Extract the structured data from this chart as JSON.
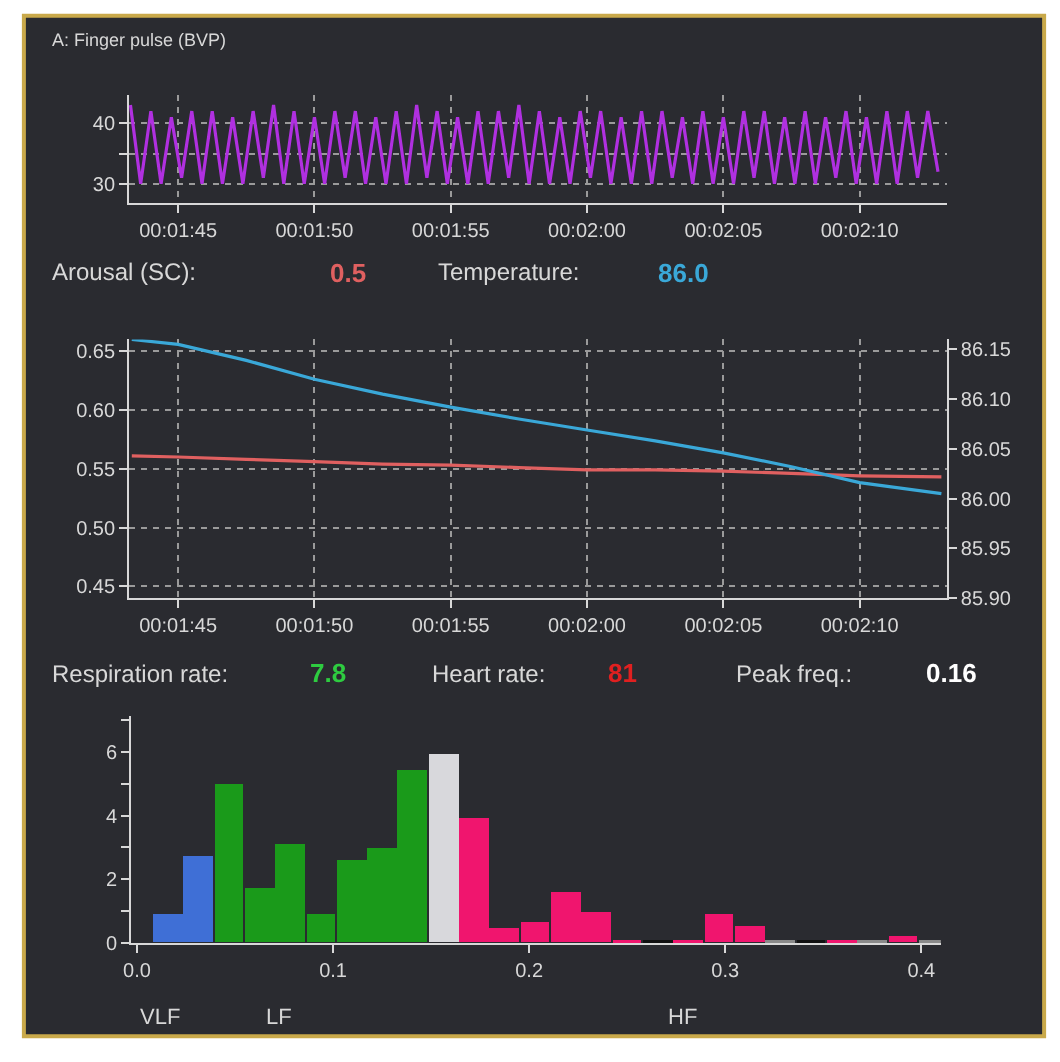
{
  "chart_data": [
    {
      "type": "line",
      "title": "A: Finger pulse (BVP)",
      "color": "#b030e0",
      "grid": true,
      "xlim": [
        103.2,
        133.2
      ],
      "ylim": [
        26.8,
        44.7
      ],
      "xticks": [
        {
          "value": 105,
          "label": "00:01:45"
        },
        {
          "value": 110,
          "label": "00:01:50"
        },
        {
          "value": 115,
          "label": "00:01:55"
        },
        {
          "value": 120,
          "label": "00:02:00"
        },
        {
          "value": 125,
          "label": "00:02:05"
        },
        {
          "value": 130,
          "label": "00:02:10"
        }
      ],
      "yticks": [
        30,
        {
          "value": 35,
          "label": null
        },
        40
      ],
      "x": [
        103.25,
        103.625,
        104,
        104.375,
        104.75,
        105.125,
        105.5,
        105.875,
        106.25,
        106.625,
        107,
        107.375,
        107.75,
        108.125,
        108.5,
        108.875,
        109.25,
        109.625,
        110,
        110.375,
        110.75,
        111.125,
        111.5,
        111.875,
        112.25,
        112.625,
        113,
        113.375,
        113.75,
        114.125,
        114.5,
        114.875,
        115.25,
        115.625,
        116,
        116.375,
        116.75,
        117.125,
        117.5,
        117.875,
        118.25,
        118.625,
        119,
        119.375,
        119.75,
        120.125,
        120.5,
        120.875,
        121.25,
        121.625,
        122,
        122.375,
        122.75,
        123.125,
        123.5,
        123.875,
        124.25,
        124.625,
        125,
        125.375,
        125.75,
        126.125,
        126.5,
        126.875,
        127.25,
        127.625,
        128,
        128.375,
        128.75,
        129.125,
        129.5,
        129.875,
        130.25,
        130.625,
        131,
        131.375,
        131.75,
        132.125,
        132.5,
        132.875
      ],
      "values": [
        43,
        30,
        42,
        30,
        41,
        31,
        42,
        30,
        42,
        30,
        41,
        30,
        42,
        31,
        43,
        30,
        42,
        30,
        41,
        30,
        42,
        31,
        42,
        30,
        41,
        30,
        42,
        30,
        43,
        31,
        42,
        30,
        41,
        30,
        42,
        30,
        42,
        31,
        43,
        30,
        42,
        30,
        41,
        30,
        42,
        31,
        42,
        30,
        41,
        30,
        42,
        30,
        42,
        31,
        41,
        30,
        42,
        30,
        41,
        30,
        42,
        31,
        42,
        30,
        41,
        30,
        42,
        30,
        41,
        31,
        42,
        30,
        41,
        30,
        42,
        30,
        42,
        31,
        42,
        32
      ]
    },
    {
      "type": "line",
      "grid": true,
      "xlim": [
        103.2,
        133.2
      ],
      "ylim": [
        0.44,
        0.66
      ],
      "y2lim": [
        85.9,
        86.16
      ],
      "xticks": [
        {
          "value": 105,
          "label": "00:01:45"
        },
        {
          "value": 110,
          "label": "00:01:50"
        },
        {
          "value": 115,
          "label": "00:01:55"
        },
        {
          "value": 120,
          "label": "00:02:00"
        },
        {
          "value": 125,
          "label": "00:02:05"
        },
        {
          "value": 130,
          "label": "00:02:10"
        }
      ],
      "yticks": [
        0.45,
        {
          "value": 0.5,
          "label": "0.50"
        },
        0.55,
        {
          "value": 0.6,
          "label": "0.60"
        },
        0.65
      ],
      "y2ticks": [
        {
          "value": 85.9,
          "label": "85.90"
        },
        85.95,
        {
          "value": 86.0,
          "label": "86.00"
        },
        86.05,
        {
          "value": 86.1,
          "label": "86.10"
        },
        86.15
      ],
      "x": [
        103.3,
        105,
        107.5,
        110,
        112.5,
        115,
        117.5,
        120,
        122.5,
        125,
        127.5,
        130,
        133
      ],
      "series": [
        {
          "color": "#e06060",
          "values": [
            0.561,
            0.56,
            0.558,
            0.556,
            0.554,
            0.553,
            0.551,
            0.549,
            0.549,
            0.548,
            0.546,
            0.544,
            0.543
          ]
        },
        {
          "color": "#3aa8d8",
          "axis": "y2",
          "values": [
            86.16,
            86.155,
            86.139,
            86.12,
            86.105,
            86.092,
            86.08,
            86.069,
            86.058,
            86.046,
            86.032,
            86.016,
            86.005
          ]
        }
      ],
      "annotations": [
        "Arousal (SC):",
        "0.5",
        "Temperature:",
        "86.0"
      ]
    },
    {
      "type": "bar",
      "grid": false,
      "xlim": [
        -0.003,
        0.41
      ],
      "ylim": [
        0,
        7.1
      ],
      "xticks": [
        {
          "value": 0,
          "label": "0.0"
        },
        0.1,
        0.2,
        0.3,
        0.4
      ],
      "yticks": [
        0,
        {
          "value": 1,
          "label": null
        },
        2,
        {
          "value": 3,
          "label": null
        },
        4,
        {
          "value": 5,
          "label": null
        },
        6,
        {
          "value": 7,
          "label": null
        }
      ],
      "x": [
        0.0156,
        0.0313,
        0.0469,
        0.0625,
        0.0781,
        0.0938,
        0.1094,
        0.125,
        0.1406,
        0.1563,
        0.1719,
        0.1875,
        0.2031,
        0.2188,
        0.2344,
        0.25,
        0.2656,
        0.2813,
        0.2969,
        0.3125,
        0.3281,
        0.3438,
        0.3594,
        0.375,
        0.3906,
        0.4063
      ],
      "values": [
        0.93,
        2.7,
        5.0,
        1.75,
        3.1,
        0.93,
        2.6,
        2.95,
        5.4,
        5.9,
        3.9,
        0.48,
        0.66,
        1.6,
        1.0,
        0.08,
        0.05,
        0.08,
        0.93,
        0.52,
        0.12,
        0.05,
        0.1,
        0.12,
        0.23,
        0.1
      ],
      "colors": [
        "#3f6fd6",
        "#3f6fd6",
        "#1a9a1a",
        "#1a9a1a",
        "#1a9a1a",
        "#1a9a1a",
        "#1a9a1a",
        "#1a9a1a",
        "#1a9a1a",
        "#d8d8dc",
        "#f0156e",
        "#f0156e",
        "#f0156e",
        "#f0156e",
        "#f0156e",
        "#f0156e",
        "#111111",
        "#f0156e",
        "#f0156e",
        "#f0156e",
        "#8a8a8a",
        "#111111",
        "#f0156e",
        "#8a8a8a",
        "#f0156e",
        "#8a8a8a"
      ],
      "annotations": [
        "Respiration rate:",
        "7.8",
        "Heart rate:",
        "81",
        "Peak freq.:",
        "0.16",
        "VLF",
        "LF",
        "HF"
      ]
    }
  ]
}
